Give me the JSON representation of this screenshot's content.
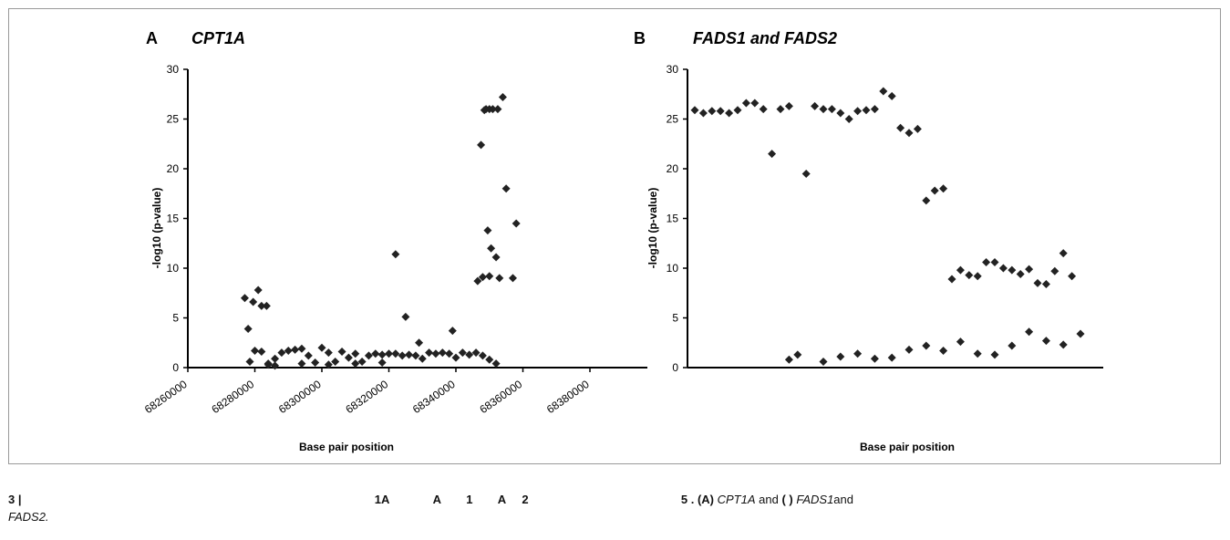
{
  "figure": {
    "panels": [
      {
        "letter": "A",
        "gene": "CPT1A",
        "gene_tail": "",
        "xlabel": "Base pair position",
        "ylabel": "-log10 (p-value)"
      },
      {
        "letter": "B",
        "gene": "FADS1",
        "gene_tail": " and FADS2",
        "xlabel": "Base pair position",
        "ylabel": "-log10 (p-value)"
      }
    ]
  },
  "caption": {
    "label": "3 |",
    "fragments": [
      "1A",
      "A",
      "1",
      "A",
      "2",
      "5",
      ". (A)"
    ],
    "genes_a": "CPT1A",
    "and_text": " and ",
    "b_marker": "( )",
    "genes_b": "FADS1",
    "and_text2": "and",
    "genes_b2": "FADS2."
  },
  "chart_data": [
    {
      "type": "scatter",
      "title": "CPT1A",
      "xlabel": "Base pair position",
      "ylabel": "-log10 (p-value)",
      "ylim": [
        0,
        30
      ],
      "yticks": [
        0,
        5,
        10,
        15,
        20,
        25,
        30
      ],
      "xlim": [
        68260000,
        68390000
      ],
      "xticks": [
        "68260000",
        "68280000",
        "68300000",
        "68320000",
        "68340000",
        "68360000",
        "68380000"
      ],
      "marker": "diamond",
      "color": "#222222",
      "x": [
        68277000,
        68278000,
        68279500,
        68281000,
        68282000,
        68283500,
        68278500,
        68280000,
        68282000,
        68284000,
        68286000,
        68288000,
        68290000,
        68292000,
        68294000,
        68296000,
        68298000,
        68300000,
        68302000,
        68304000,
        68306000,
        68308000,
        68310000,
        68312000,
        68314000,
        68316000,
        68318000,
        68320000,
        68322000,
        68324000,
        68326000,
        68328000,
        68330000,
        68332000,
        68334000,
        68336000,
        68338000,
        68340000,
        68342000,
        68344000,
        68346000,
        68348000,
        68350000,
        68352000,
        68284000,
        68286000,
        68294000,
        68302000,
        68310000,
        68318000,
        68322000,
        68325000,
        68329000,
        68339000,
        68346500,
        68347500,
        68348500,
        68349000,
        68350000,
        68351000,
        68352500,
        68354000,
        68349500,
        68350500,
        68352000,
        68355000,
        68358000,
        68348000,
        68350000,
        68353000,
        68357000
      ],
      "y": [
        7.0,
        3.9,
        6.6,
        7.8,
        6.2,
        6.2,
        0.6,
        1.7,
        1.6,
        0.4,
        0.9,
        1.5,
        1.7,
        1.8,
        1.9,
        1.2,
        0.5,
        2.0,
        1.5,
        0.6,
        1.6,
        1.0,
        1.4,
        0.6,
        1.2,
        1.4,
        1.3,
        1.4,
        1.4,
        1.2,
        1.3,
        1.2,
        0.9,
        1.5,
        1.4,
        1.5,
        1.4,
        1.0,
        1.5,
        1.3,
        1.5,
        1.2,
        0.8,
        0.4,
        0.3,
        0.2,
        0.4,
        0.3,
        0.4,
        0.5,
        11.4,
        5.1,
        2.5,
        3.7,
        8.7,
        22.4,
        25.9,
        26.0,
        26.0,
        26.0,
        26.0,
        27.2,
        13.8,
        12.0,
        11.1,
        18.0,
        14.5,
        9.1,
        9.2,
        9.0,
        9.0
      ]
    },
    {
      "type": "scatter",
      "title": "FADS1 and FADS2",
      "xlabel": "Base pair position",
      "ylabel": "-log10 (p-value)",
      "ylim": [
        0,
        30
      ],
      "yticks": [
        0,
        5,
        10,
        15,
        20,
        25,
        30
      ],
      "marker": "diamond",
      "color": "#222222",
      "x_index": [
        1,
        2,
        3,
        4,
        5,
        6,
        7,
        8,
        9,
        10,
        11,
        12,
        14,
        15,
        16,
        17,
        18,
        19,
        20,
        21,
        22,
        23,
        24,
        25,
        26,
        27,
        28,
        29,
        30,
        31,
        32,
        33,
        34,
        35,
        36,
        37,
        38,
        39,
        40,
        41,
        42,
        43,
        44,
        45,
        46,
        12,
        13,
        16,
        18,
        20,
        22,
        24,
        26,
        28,
        30,
        32,
        34,
        36,
        38,
        40,
        42,
        44
      ],
      "y": [
        25.9,
        25.6,
        25.8,
        25.8,
        25.6,
        25.9,
        26.6,
        26.6,
        26.0,
        21.5,
        26.0,
        26.3,
        19.5,
        26.3,
        26.0,
        26.0,
        25.6,
        25.0,
        25.8,
        25.9,
        26.0,
        27.8,
        27.3,
        24.1,
        23.6,
        24.0,
        16.8,
        17.8,
        18.0,
        8.9,
        9.8,
        9.3,
        9.2,
        10.6,
        10.6,
        10.0,
        9.8,
        9.4,
        9.9,
        8.5,
        8.4,
        9.7,
        11.5,
        9.2,
        3.4,
        0.8,
        1.3,
        0.6,
        1.1,
        1.4,
        0.9,
        1.0,
        1.8,
        2.2,
        1.7,
        2.6,
        1.4,
        1.3,
        2.2,
        3.6,
        2.7,
        2.3
      ]
    }
  ]
}
